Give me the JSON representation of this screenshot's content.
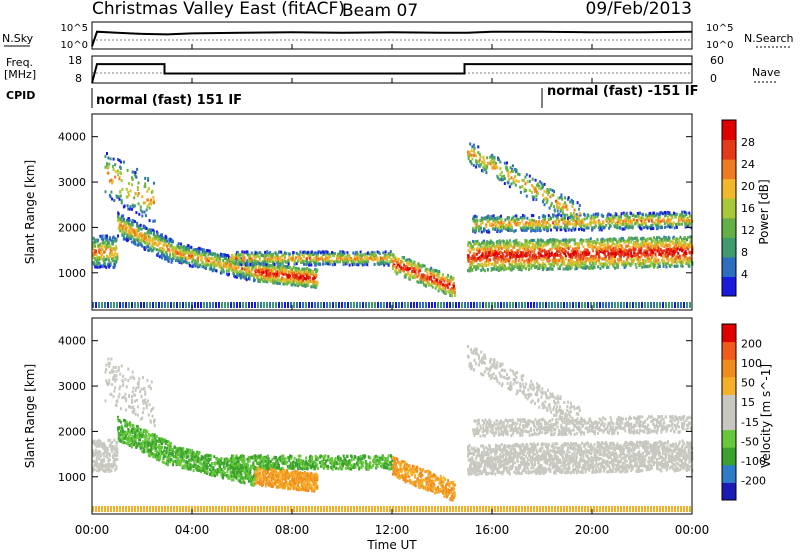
{
  "header": {
    "title": "Christmas Valley East (fitACF)",
    "beam": "Beam 07",
    "date": "09/Feb/2013"
  },
  "colors": {
    "scale_power": [
      "#1a1adc",
      "#2d6fbe",
      "#3f9a6e",
      "#65b046",
      "#a8c83a",
      "#f0b82a",
      "#f07a22",
      "#e43a1a",
      "#e00000"
    ],
    "scale_velocity": [
      "#e00000",
      "#f05a1a",
      "#f08c1e",
      "#f5b02a",
      "#c8c8c0",
      "#c8c8c0",
      "#66c83a",
      "#3aa02e",
      "#2e7cc8",
      "#1a1ab4"
    ],
    "ground_scatter": "#bebebe"
  },
  "chart_data": [
    {
      "type": "line",
      "name": "noise-panel",
      "left_labels": [
        "N.Sky",
        "10^5",
        "10^0"
      ],
      "right_labels": [
        "10^5",
        "10^0",
        "N.Search"
      ],
      "series": [
        {
          "name": "N.Sky",
          "x": [
            0,
            0.2,
            1,
            2,
            3,
            4,
            6,
            8,
            10,
            12,
            14,
            15,
            16,
            18,
            20,
            22,
            24
          ],
          "y": [
            0.5,
            3.2,
            3.0,
            2.8,
            2.7,
            2.9,
            3.0,
            3.1,
            3.0,
            3.1,
            3.0,
            3.0,
            3.2,
            3.2,
            3.1,
            3.1,
            3.2
          ]
        }
      ],
      "xlim": [
        0,
        24
      ],
      "ylim": [
        0,
        5
      ]
    },
    {
      "type": "line",
      "name": "frequency-panel",
      "left_labels": [
        "Freq.",
        "[MHz]",
        "18",
        "8"
      ],
      "right_labels": [
        "60",
        "0",
        "Nave"
      ],
      "series": [
        {
          "name": "Freq",
          "x": [
            0,
            0.2,
            2.9,
            2.9,
            14.9,
            14.9,
            24
          ],
          "y": [
            8,
            15,
            15,
            11.5,
            11.5,
            15,
            15
          ]
        }
      ],
      "xlim": [
        0,
        24
      ],
      "ylim": [
        8,
        18
      ]
    },
    {
      "type": "table",
      "name": "cpid-panel",
      "label": "CPID",
      "segments": [
        {
          "start": 0,
          "end": 18,
          "text": "normal (fast) 151 IF"
        },
        {
          "start": 18,
          "end": 24,
          "text": "normal (fast) -151 IF"
        }
      ]
    },
    {
      "type": "heatmap",
      "name": "power-panel",
      "ylabel": "Slant Range [km]",
      "yticks": [
        1000,
        2000,
        3000,
        4000
      ],
      "xlim": [
        0,
        24
      ],
      "ylim": [
        180,
        4500
      ],
      "colorbar": {
        "label": "Power [dB]",
        "ticks": [
          "4",
          "8",
          "12",
          "16",
          "20",
          "24",
          "28"
        ],
        "range": [
          0,
          30
        ]
      }
    },
    {
      "type": "heatmap",
      "name": "velocity-panel",
      "ylabel": "Slant Range [km]",
      "yticks": [
        1000,
        2000,
        3000,
        4000
      ],
      "xlim": [
        0,
        24
      ],
      "ylim": [
        180,
        4500
      ],
      "colorbar": {
        "label": "Velocity [m s^-1]",
        "ticks": [
          "200",
          "100",
          "50",
          "15",
          "-15",
          "-50",
          "-100",
          "-200"
        ],
        "range": [
          -250,
          250
        ]
      }
    }
  ],
  "xaxis": {
    "label": "Time UT",
    "ticks": [
      "00:00",
      "04:00",
      "08:00",
      "12:00",
      "16:00",
      "20:00",
      "00:00"
    ],
    "tick_hours": [
      0,
      4,
      8,
      12,
      16,
      20,
      24
    ]
  }
}
